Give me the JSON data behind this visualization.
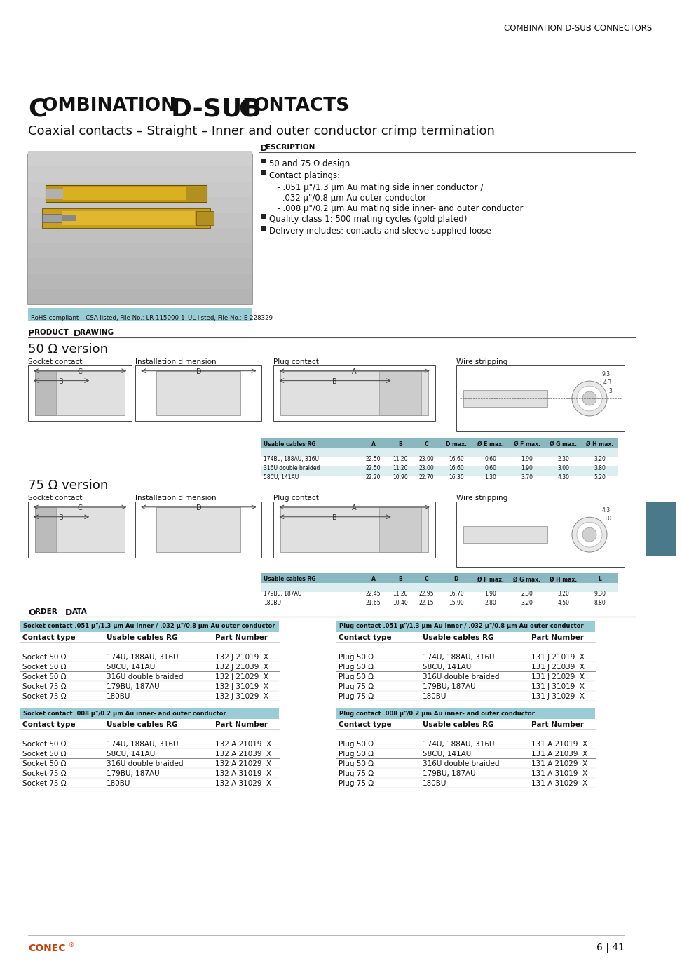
{
  "header_bg": "#b8d8dc",
  "header_text": "Combination D‑Sub Connectors",
  "page_bg": "#ffffff",
  "title_line1": "C",
  "title_caps": "OMBINATION",
  "title_line2": " D-SUB C",
  "title_caps2": "ONTACTS",
  "title": "COMBINATION D-SUB CONTACTS",
  "subtitle": "Coaxial contacts – Straight – Inner and outer conductor crimp termination",
  "description_title": "D",
  "description_title2": "ESCRIPTION",
  "description_items": [
    "50 and 75 Ω design",
    "Contact platings:",
    "   - .051 μ\"/1.3 μm Au mating side inner conductor /",
    "     .032 μ\"/0.8 μm Au outer conductor",
    "   - .008 μ\"/0.2 μm Au mating side inner- and outer conductor",
    "Quality class 1: 500 mating cycles (gold plated)",
    "Delivery includes: contacts and sleeve supplied loose"
  ],
  "rohs_text": "RoHS compliant – CSA listed, File No.: LR 115000-1–UL listed, File No.: E 228329",
  "rohs_bg": "#99ccd4",
  "product_drawing_title": "P",
  "product_drawing_title2": "RODUCT ",
  "product_drawing_title3": "D",
  "product_drawing_title4": "RAWING",
  "version_50_title": "50 Ω version",
  "version_75_title": "75 Ω version",
  "table_50_headers": [
    "Usable cables RG",
    "A",
    "B",
    "C",
    "D max.",
    "Ø E max.",
    "Ø F max.",
    "Ø G max.",
    "Ø H max."
  ],
  "table_50_rows": [
    [
      "174Bu, 188AU, 316U",
      "22.50",
      "11.20",
      "23.00",
      "16.60",
      "0.60",
      "1.90",
      "2.30",
      "3.20"
    ],
    [
      "316U double braided",
      "22.50",
      "11.20",
      "23.00",
      "16.60",
      "0.60",
      "1.90",
      "3.00",
      "3.80"
    ],
    [
      "58CU, 141AU",
      "22.20",
      "10.90",
      "22.70",
      "16.30",
      "1.30",
      "3.70",
      "4.30",
      "5.20"
    ]
  ],
  "table_75_headers": [
    "Usable cables RG",
    "A",
    "B",
    "C",
    "D",
    "Ø F max.",
    "Ø G max.",
    "Ø H max.",
    "L"
  ],
  "table_75_rows": [
    [
      "179Bu, 187AU",
      "22.45",
      "11.20",
      "22.95",
      "16.70",
      "1.90",
      "2.30",
      "3.20",
      "9.30"
    ],
    [
      "180BU",
      "21.65",
      "10.40",
      "22.15",
      "15.90",
      "2.80",
      "3.20",
      "4.50",
      "8.80"
    ]
  ],
  "order_data_title": "O",
  "order_data_title2": "RDER ",
  "order_data_title3": "D",
  "order_data_title4": "ATA",
  "socket_contact_title": "Socket contact .051 μ\"/1.3 μm Au inner / .032 μ\"/0.8 μm Au outer conductor",
  "socket_contact_headers": [
    "Contact type",
    "Usable cables RG",
    "Part Number"
  ],
  "socket_contact_rows": [
    [
      "Socket 50 Ω",
      "174U, 188AU, 316U",
      "132 J 21019  X"
    ],
    [
      "Socket 50 Ω",
      "58CU, 141AU",
      "132 J 21039  X"
    ],
    [
      "Socket 50 Ω",
      "316U double braided",
      "132 J 21029  X"
    ],
    [
      "Socket 75 Ω",
      "179BU, 187AU",
      "132 J 31019  X"
    ],
    [
      "Socket 75 Ω",
      "180BU",
      "132 J 31029  X"
    ]
  ],
  "plug_contact_title": "Plug contact .051 μ\"/1.3 μm Au inner / .032 μ\"/0.8 μm Au outer conductor",
  "plug_contact_headers": [
    "Contact type",
    "Usable cables RG",
    "Part Number"
  ],
  "plug_contact_rows": [
    [
      "Plug 50 Ω",
      "174U, 188AU, 316U",
      "131 J 21019  X"
    ],
    [
      "Plug 50 Ω",
      "58CU, 141AU",
      "131 J 21039  X"
    ],
    [
      "Plug 50 Ω",
      "316U double braided",
      "131 J 21029  X"
    ],
    [
      "Plug 75 Ω",
      "179BU, 187AU",
      "131 J 31019  X"
    ],
    [
      "Plug 75 Ω",
      "180BU",
      "131 J 31029  X"
    ]
  ],
  "socket_contact2_title": "Socket contact .008 μ\"/0.2 μm Au inner- and outer conductor",
  "socket_contact2_rows": [
    [
      "Socket 50 Ω",
      "174U, 188AU, 316U",
      "132 A 21019  X"
    ],
    [
      "Socket 50 Ω",
      "58CU, 141AU",
      "132 A 21039  X"
    ],
    [
      "Socket 50 Ω",
      "316U double braided",
      "132 A 21029  X"
    ],
    [
      "Socket 75 Ω",
      "179BU, 187AU",
      "132 A 31019  X"
    ],
    [
      "Socket 75 Ω",
      "180BU",
      "132 A 31029  X"
    ]
  ],
  "plug_contact2_title": "Plug contact .008 μ\"/0.2 μm Au inner- and outer conductor",
  "plug_contact2_rows": [
    [
      "Plug 50 Ω",
      "174U, 188AU, 316U",
      "131 A 21019  X"
    ],
    [
      "Plug 50 Ω",
      "58CU, 141AU",
      "131 A 21039  X"
    ],
    [
      "Plug 50 Ω",
      "316U double braided",
      "131 A 21029  X"
    ],
    [
      "Plug 75 Ω",
      "179BU, 187AU",
      "131 A 31019  X"
    ],
    [
      "Plug 75 Ω",
      "180BU",
      "131 A 31029  X"
    ]
  ],
  "footer_page": "6 | 41",
  "sidebar_bg": "#b8d8dc",
  "table_header_bg": "#8ab8c0",
  "table_row_alt": "#ddeef0",
  "order_title_bg": "#99ccd4",
  "order_hdr_bg_color": "#ddeef0",
  "divider_color": "#888888",
  "text_color": "#1a1a1a"
}
